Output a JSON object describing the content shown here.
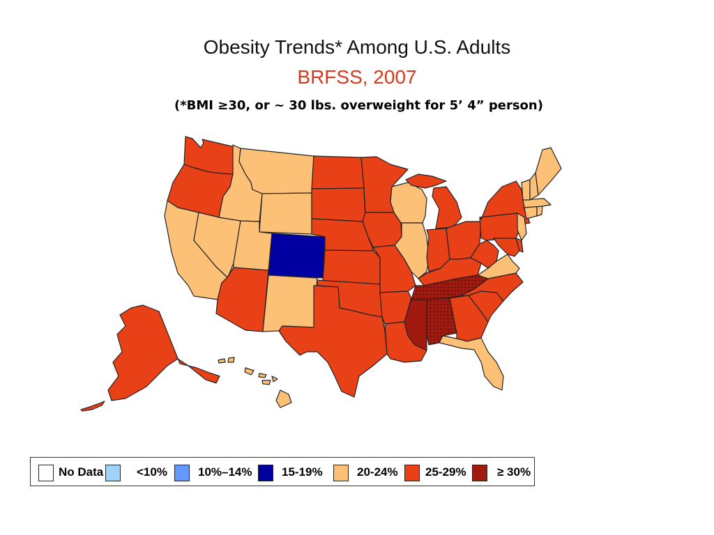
{
  "header": {
    "title": "Obesity Trends* Among U.S. Adults",
    "subtitle": "BRFSS, 2007",
    "note": "(*BMI ≥30, or ~ 30 lbs. overweight for 5’ 4” person)"
  },
  "colors": {
    "no_data": "#ffffff",
    "lt10": "#9fd3f7",
    "c10_14": "#6699ff",
    "c15_19": "#0000a0",
    "c20_24": "#fcc077",
    "c25_29": "#e84118",
    "c30": "#a01a10",
    "border": "#222222"
  },
  "legend": {
    "items": [
      {
        "label": "No Data",
        "color": "#ffffff"
      },
      {
        "label": "<10%",
        "color": "#9fd3f7"
      },
      {
        "label": "10%–14%",
        "color": "#6699ff"
      },
      {
        "label": "15-19%",
        "color": "#0000a0"
      },
      {
        "label": "20-24%",
        "color": "#fcc077"
      },
      {
        "label": "25-29%",
        "color": "#e84118"
      },
      {
        "label": "≥ 30%",
        "color": "#a01a10"
      }
    ]
  },
  "map": {
    "states": {
      "WA": "25-29%",
      "OR": "25-29%",
      "CA": "20-24%",
      "NV": "20-24%",
      "ID": "20-24%",
      "MT": "20-24%",
      "WY": "20-24%",
      "UT": "20-24%",
      "CO": "15-19%",
      "AZ": "25-29%",
      "NM": "20-24%",
      "ND": "25-29%",
      "SD": "25-29%",
      "NE": "25-29%",
      "KS": "25-29%",
      "OK": "25-29%",
      "TX": "25-29%",
      "MN": "25-29%",
      "IA": "25-29%",
      "MO": "25-29%",
      "AR": "25-29%",
      "LA": "25-29%",
      "WI": "20-24%",
      "IL": "20-24%",
      "MI": "25-29%",
      "IN": "25-29%",
      "OH": "25-29%",
      "KY": "25-29%",
      "TN": "≥ 30%",
      "MS": "≥ 30%",
      "AL": "≥ 30%",
      "GA": "25-29%",
      "FL": "20-24%",
      "SC": "25-29%",
      "NC": "25-29%",
      "VA": "20-24%",
      "WV": "25-29%",
      "PA": "25-29%",
      "NY": "25-29%",
      "MD": "25-29%",
      "DE": "25-29%",
      "NJ": "20-24%",
      "CT": "20-24%",
      "RI": "20-24%",
      "MA": "20-24%",
      "VT": "20-24%",
      "NH": "20-24%",
      "ME": "20-24%",
      "AK": "25-29%",
      "HI": "20-24%"
    }
  }
}
